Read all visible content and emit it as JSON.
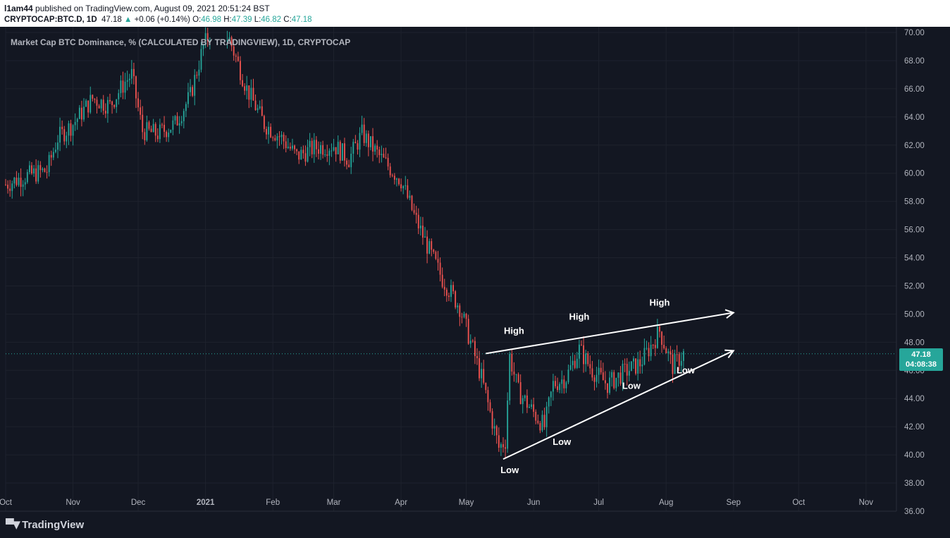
{
  "header": {
    "author": "l1am44",
    "published_text": "published on TradingView.com, August 09, 2021 20:51:24 BST",
    "symbol": "CRYPTOCAP:BTC.D, 1D",
    "last": "47.18",
    "change": "+0.06 (+0.14%)",
    "o_label": "O:",
    "o_val": "46.98",
    "h_label": "H:",
    "h_val": "47.39",
    "l_label": "L:",
    "l_val": "46.82",
    "c_label": "C:",
    "c_val": "47.18"
  },
  "footer": {
    "brand": "TradingView"
  },
  "price_tag": {
    "price": "47.18",
    "countdown": "04:08:38"
  },
  "colors": {
    "background": "#131722",
    "grid": "#1e222d",
    "up": "#26a69a",
    "down": "#ef5350",
    "annotation": "#ffffff",
    "axis_text": "#b2b5be"
  },
  "chart_data": {
    "type": "candlestick",
    "title": "Market Cap BTC Dominance, % (CALCULATED BY TRADINGVIEW), 1D, CRYPTOCAP",
    "ylim": [
      36,
      70
    ],
    "y_ticks": [
      "36.00",
      "38.00",
      "40.00",
      "42.00",
      "44.00",
      "46.00",
      "48.00",
      "50.00",
      "52.00",
      "54.00",
      "56.00",
      "58.00",
      "60.00",
      "62.00",
      "64.00",
      "66.00",
      "68.00",
      "70.00"
    ],
    "x_ticks": [
      "Oct",
      "Nov",
      "Dec",
      "2021",
      "Feb",
      "Mar",
      "Apr",
      "May",
      "Jun",
      "Jul",
      "Aug",
      "Sep",
      "Oct",
      "Nov"
    ],
    "x_range": [
      "2020-10-01",
      "2021-11-15"
    ],
    "last_date": "2021-08-09",
    "series": [
      {
        "name": "BTC.D close (approx.)",
        "values": [
          [
            "2020-10-01",
            59.2
          ],
          [
            "2020-10-10",
            59.8
          ],
          [
            "2020-10-20",
            60.2
          ],
          [
            "2020-10-25",
            62.5
          ],
          [
            "2020-11-01",
            63.5
          ],
          [
            "2020-11-06",
            64.5
          ],
          [
            "2020-11-10",
            65.3
          ],
          [
            "2020-11-18",
            64.8
          ],
          [
            "2020-11-25",
            66.5
          ],
          [
            "2020-11-28",
            67.0
          ],
          [
            "2020-12-03",
            63.0
          ],
          [
            "2020-12-10",
            62.8
          ],
          [
            "2020-12-18",
            63.5
          ],
          [
            "2020-12-25",
            65.5
          ],
          [
            "2020-12-31",
            69.0
          ],
          [
            "2021-01-05",
            70.5
          ],
          [
            "2021-01-12",
            69.5
          ],
          [
            "2021-01-20",
            66.0
          ],
          [
            "2021-01-28",
            63.5
          ],
          [
            "2021-02-05",
            62.5
          ],
          [
            "2021-02-12",
            61.2
          ],
          [
            "2021-02-20",
            61.8
          ],
          [
            "2021-03-01",
            62.0
          ],
          [
            "2021-03-08",
            61.0
          ],
          [
            "2021-03-14",
            62.8
          ],
          [
            "2021-03-22",
            61.2
          ],
          [
            "2021-04-01",
            59.5
          ],
          [
            "2021-04-07",
            57.0
          ],
          [
            "2021-04-14",
            54.5
          ],
          [
            "2021-04-20",
            52.5
          ],
          [
            "2021-04-28",
            50.5
          ],
          [
            "2021-05-03",
            48.0
          ],
          [
            "2021-05-08",
            45.5
          ],
          [
            "2021-05-12",
            43.0
          ],
          [
            "2021-05-16",
            40.5
          ],
          [
            "2021-05-19",
            41.0
          ],
          [
            "2021-05-21",
            47.0
          ],
          [
            "2021-05-25",
            44.5
          ],
          [
            "2021-06-01",
            43.0
          ],
          [
            "2021-06-06",
            42.0
          ],
          [
            "2021-06-10",
            45.0
          ],
          [
            "2021-06-16",
            45.5
          ],
          [
            "2021-06-22",
            47.5
          ],
          [
            "2021-06-28",
            46.0
          ],
          [
            "2021-07-05",
            45.0
          ],
          [
            "2021-07-12",
            45.8
          ],
          [
            "2021-07-20",
            46.5
          ],
          [
            "2021-07-26",
            48.0
          ],
          [
            "2021-07-29",
            48.8
          ],
          [
            "2021-08-01",
            47.5
          ],
          [
            "2021-08-04",
            46.3
          ],
          [
            "2021-08-09",
            47.18
          ]
        ]
      }
    ],
    "annotations": [
      {
        "text": "High",
        "date": "2021-05-23",
        "price": 48.6
      },
      {
        "text": "High",
        "date": "2021-06-22",
        "price": 49.6
      },
      {
        "text": "High",
        "date": "2021-07-29",
        "price": 50.6
      },
      {
        "text": "Low",
        "date": "2021-05-21",
        "price": 38.7
      },
      {
        "text": "Low",
        "date": "2021-06-14",
        "price": 40.7
      },
      {
        "text": "Low",
        "date": "2021-07-16",
        "price": 44.7
      },
      {
        "text": "Low",
        "date": "2021-08-10",
        "price": 45.8
      }
    ],
    "trendlines": [
      {
        "from": [
          "2021-05-10",
          47.2
        ],
        "to": [
          "2021-09-01",
          50.1
        ]
      },
      {
        "from": [
          "2021-05-18",
          39.7
        ],
        "to": [
          "2021-09-01",
          47.4
        ]
      }
    ]
  }
}
